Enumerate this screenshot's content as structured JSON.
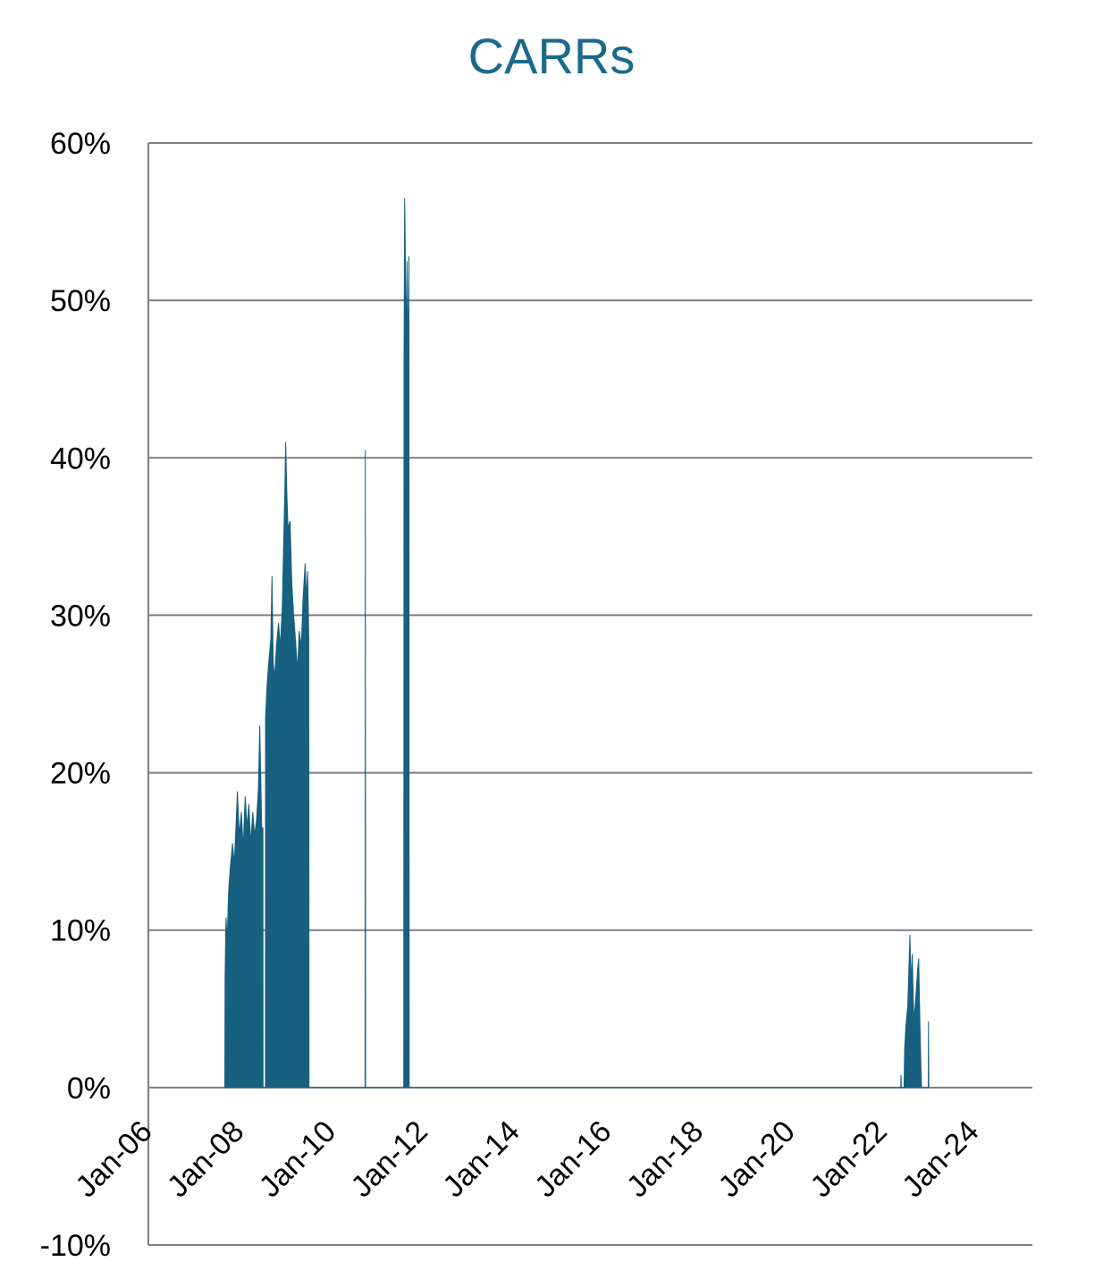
{
  "colors": {
    "series": "#17607f",
    "title": "#1a6a8c",
    "grid": "#7f7f7f"
  },
  "chart_data": {
    "type": "area",
    "title": "CARRs",
    "xlabel": "",
    "ylabel": "",
    "y_unit": "percent",
    "ylim": [
      -10,
      60
    ],
    "yticks": [
      -10,
      0,
      10,
      20,
      30,
      40,
      50,
      60
    ],
    "ytick_labels": [
      "-10%",
      "0%",
      "10%",
      "20%",
      "30%",
      "40%",
      "50%",
      "60%"
    ],
    "xlim": [
      "2006-01",
      "2025-04"
    ],
    "xticks": [
      "2006-01",
      "2008-01",
      "2010-01",
      "2012-01",
      "2014-01",
      "2016-01",
      "2018-01",
      "2020-01",
      "2022-01",
      "2024-01"
    ],
    "xtick_labels": [
      "Jan-06",
      "Jan-08",
      "Jan-10",
      "Jan-12",
      "Jan-14",
      "Jan-16",
      "Jan-18",
      "Jan-20",
      "Jan-22",
      "Jan-24"
    ],
    "grid": true,
    "legend": "none",
    "series": [
      {
        "points": [
          [
            "2007-09-01",
            0
          ],
          [
            "2007-09-03",
            7
          ],
          [
            "2007-09-10",
            10.8
          ],
          [
            "2007-09-20",
            9.5
          ],
          [
            "2007-10-01",
            12.5
          ],
          [
            "2007-10-15",
            14
          ],
          [
            "2007-11-01",
            15.5
          ],
          [
            "2007-11-15",
            14.2
          ],
          [
            "2007-12-01",
            17
          ],
          [
            "2007-12-10",
            18.8
          ],
          [
            "2007-12-25",
            16
          ],
          [
            "2008-01-10",
            17.5
          ],
          [
            "2008-01-25",
            15.2
          ],
          [
            "2008-02-10",
            18.5
          ],
          [
            "2008-02-25",
            16.5
          ],
          [
            "2008-03-10",
            18
          ],
          [
            "2008-03-25",
            15.5
          ],
          [
            "2008-04-10",
            17.5
          ],
          [
            "2008-04-25",
            16
          ],
          [
            "2008-05-10",
            17
          ],
          [
            "2008-05-25",
            19
          ],
          [
            "2008-06-05",
            23
          ],
          [
            "2008-06-12",
            20
          ],
          [
            "2008-06-20",
            16.5
          ],
          [
            "2008-06-30",
            16.5
          ],
          [
            "2008-07-01",
            0
          ],
          [
            "2008-07-20",
            0
          ],
          [
            "2008-07-21",
            23.5
          ],
          [
            "2008-08-01",
            25.5
          ],
          [
            "2008-08-15",
            27
          ],
          [
            "2008-09-01",
            28.5
          ],
          [
            "2008-09-10",
            32.5
          ],
          [
            "2008-09-20",
            27
          ],
          [
            "2008-10-01",
            26
          ],
          [
            "2008-10-15",
            28
          ],
          [
            "2008-11-01",
            29.5
          ],
          [
            "2008-11-15",
            28
          ],
          [
            "2008-12-01",
            30.5
          ],
          [
            "2008-12-10",
            34
          ],
          [
            "2008-12-20",
            37.5
          ],
          [
            "2008-12-28",
            41
          ],
          [
            "2009-01-05",
            38
          ],
          [
            "2009-01-15",
            35.5
          ],
          [
            "2009-02-01",
            36
          ],
          [
            "2009-02-15",
            32
          ],
          [
            "2009-03-01",
            30
          ],
          [
            "2009-03-15",
            28.5
          ],
          [
            "2009-04-01",
            26.5
          ],
          [
            "2009-04-15",
            29
          ],
          [
            "2009-05-01",
            28
          ],
          [
            "2009-05-15",
            31
          ],
          [
            "2009-06-01",
            33.3
          ],
          [
            "2009-06-10",
            31
          ],
          [
            "2009-06-20",
            32.8
          ],
          [
            "2009-06-30",
            28.5
          ],
          [
            "2009-07-01",
            0
          ],
          [
            "2010-09-20",
            0
          ],
          [
            "2010-09-22",
            40.5
          ],
          [
            "2010-09-24",
            0
          ],
          [
            "2011-07-25",
            0
          ],
          [
            "2011-07-27",
            46
          ],
          [
            "2011-08-01",
            56.5
          ],
          [
            "2011-08-05",
            54
          ],
          [
            "2011-08-10",
            49
          ],
          [
            "2011-08-15",
            48.5
          ],
          [
            "2011-08-20",
            52.5
          ],
          [
            "2011-08-25",
            50
          ],
          [
            "2011-08-28",
            49
          ],
          [
            "2011-08-29",
            0
          ],
          [
            "2011-09-03",
            0
          ],
          [
            "2011-09-04",
            52.8
          ],
          [
            "2011-09-06",
            0
          ],
          [
            "2022-05-20",
            0
          ],
          [
            "2022-05-22",
            0.8
          ],
          [
            "2022-05-25",
            0
          ],
          [
            "2022-06-15",
            0
          ],
          [
            "2022-06-20",
            2.5
          ],
          [
            "2022-07-01",
            4
          ],
          [
            "2022-07-15",
            5.2
          ],
          [
            "2022-08-01",
            9.7
          ],
          [
            "2022-08-10",
            6.5
          ],
          [
            "2022-08-20",
            8.5
          ],
          [
            "2022-09-01",
            4.2
          ],
          [
            "2022-09-15",
            5.5
          ],
          [
            "2022-10-01",
            7.5
          ],
          [
            "2022-10-10",
            8.2
          ],
          [
            "2022-10-20",
            4
          ],
          [
            "2022-11-01",
            0
          ],
          [
            "2022-12-25",
            0
          ],
          [
            "2022-12-27",
            4.2
          ],
          [
            "2022-12-29",
            0
          ]
        ]
      }
    ]
  }
}
